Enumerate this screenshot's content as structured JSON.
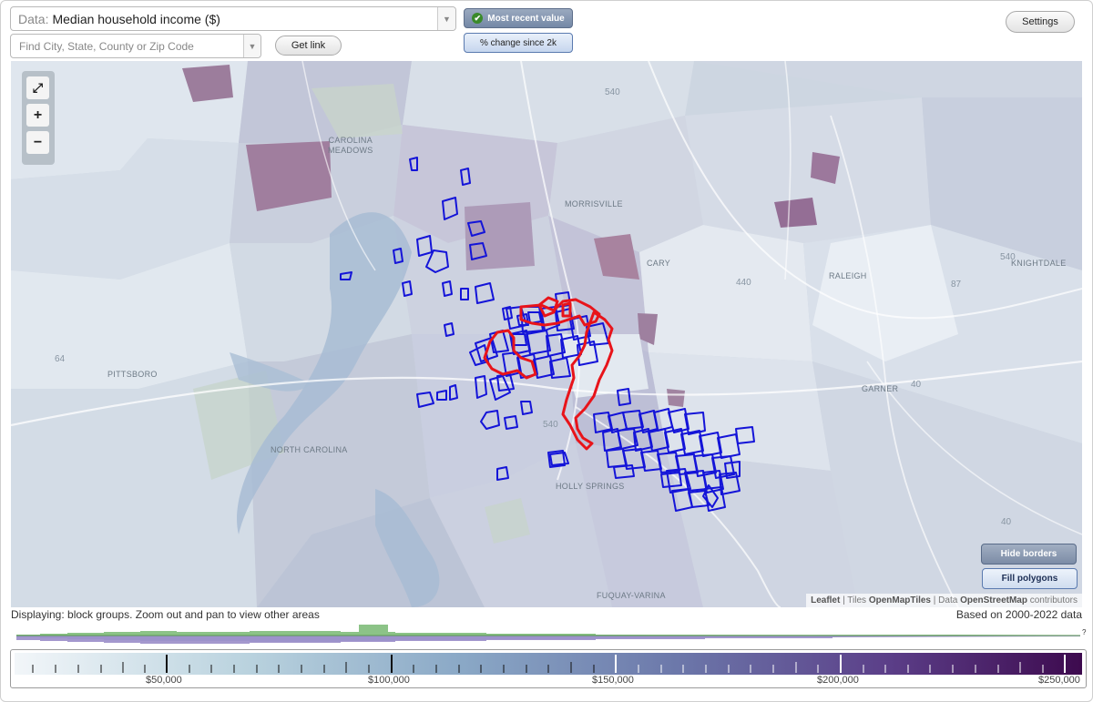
{
  "data_select": {
    "prefix": "Data:",
    "value": "Median household income ($)"
  },
  "search": {
    "placeholder": "Find City, State, County or Zip Code"
  },
  "buttons": {
    "get_link": "Get link",
    "most_recent": "Most recent value",
    "pct_change": "% change since 2k",
    "settings": "Settings",
    "hide_borders": "Hide borders",
    "fill_polygons": "Fill polygons"
  },
  "zoom": {
    "fit": "⤢",
    "in": "+",
    "out": "−"
  },
  "map": {
    "places": {
      "carolina_meadows": "CAROLINA\nMEADOWS",
      "morrisville": "MORRISVILLE",
      "cary": "CARY",
      "raleigh": "RALEIGH",
      "knightdale": "KNIGHTDALE",
      "pittsboro": "PITTSBORO",
      "garner": "GARNER",
      "north_carolina": "NORTH CAROLINA",
      "holly_springs": "HOLLY SPRINGS",
      "fuquay_varina": "FUQUAY-VARINA"
    },
    "roads": {
      "r540a": "540",
      "r540b": "540",
      "r540c": "540",
      "r440": "440",
      "r40a": "40",
      "r40b": "40",
      "r64": "64",
      "r87": "87",
      "r540e": "540"
    },
    "attribution": {
      "leaflet": "Leaflet",
      "tiles_prefix": " | Tiles ",
      "tiles": "OpenMapTiles",
      "data_prefix": " | Data ",
      "data": "OpenStreetMap",
      "suffix": " contributors"
    },
    "colors": {
      "highlight_red": "#e8141a",
      "outline_blue": "#1414d8"
    }
  },
  "status": {
    "displaying": "Displaying: block groups. Zoom out and pan to view other areas",
    "based_on": "Based on 2000-2022 data"
  },
  "histogram": {
    "unknown_marker": "?"
  },
  "legend": {
    "labels": [
      "$50,000",
      "$100,000",
      "$150,000",
      "$200,000",
      "$250,000"
    ]
  }
}
